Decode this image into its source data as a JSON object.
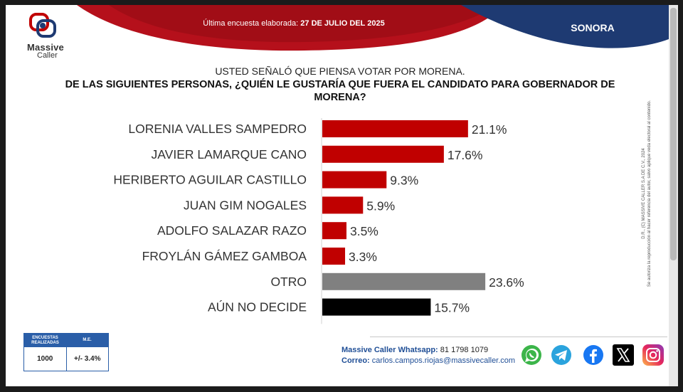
{
  "header": {
    "brand_line1": "Massive",
    "brand_line2": "Caller",
    "survey_date_prefix": "Última encuesta elaborada:",
    "survey_date": "27 DE JULIO DEL 2025",
    "region": "SONORA",
    "colors": {
      "red": "#b5101b",
      "navy": "#1e3a72"
    }
  },
  "question": {
    "pre": "USTED SEÑALÓ QUE PIENSA VOTAR POR MORENA.",
    "main": "DE LAS SIGUIENTES PERSONAS, ¿QUIÉN LE GUSTARÍA QUE FUERA EL CANDIDATO PARA GOBERNADOR DE MORENA?"
  },
  "chart_data": {
    "type": "bar",
    "orientation": "horizontal",
    "categories": [
      "LORENIA VALLES SAMPEDRO",
      "JAVIER LAMARQUE CANO",
      "HERIBERTO AGUILAR CASTILLO",
      "JUAN GIM NOGALES",
      "ADOLFO SALAZAR RAZO",
      "FROYLÁN GÁMEZ GAMBOA",
      "OTRO",
      "AÚN NO DECIDE"
    ],
    "values": [
      21.1,
      17.6,
      9.3,
      5.9,
      3.5,
      3.3,
      23.6,
      15.7
    ],
    "value_labels": [
      "21.1%",
      "17.6%",
      "9.3%",
      "5.9%",
      "3.5%",
      "3.3%",
      "23.6%",
      "15.7%"
    ],
    "colors": [
      "#c00000",
      "#c00000",
      "#c00000",
      "#c00000",
      "#c00000",
      "#c00000",
      "#808080",
      "#000000"
    ],
    "xlim": [
      0,
      24
    ],
    "grid": false
  },
  "legal": {
    "line1": "D.R., (C) MASSIVE CALLER S.A DE C.V., 2024",
    "line2": "Se autoriza la reproducción al hacer referencia del autor, salvo aplique veda electoral al contenido."
  },
  "footer": {
    "table": {
      "col1_header": "ENCUESTAS REALIZADAS",
      "col2_header": "M.E.",
      "col1_value": "1000",
      "col2_value": "+/- 3.4%"
    },
    "whatsapp_label": "Massive Caller Whatsapp:",
    "whatsapp_number": "81 1798 1079",
    "email_label": "Correo:",
    "email": "carlos.campos.riojas@massivecaller.com",
    "social_icons": [
      "whatsapp-icon",
      "telegram-icon",
      "facebook-icon",
      "x-icon",
      "instagram-icon"
    ]
  }
}
